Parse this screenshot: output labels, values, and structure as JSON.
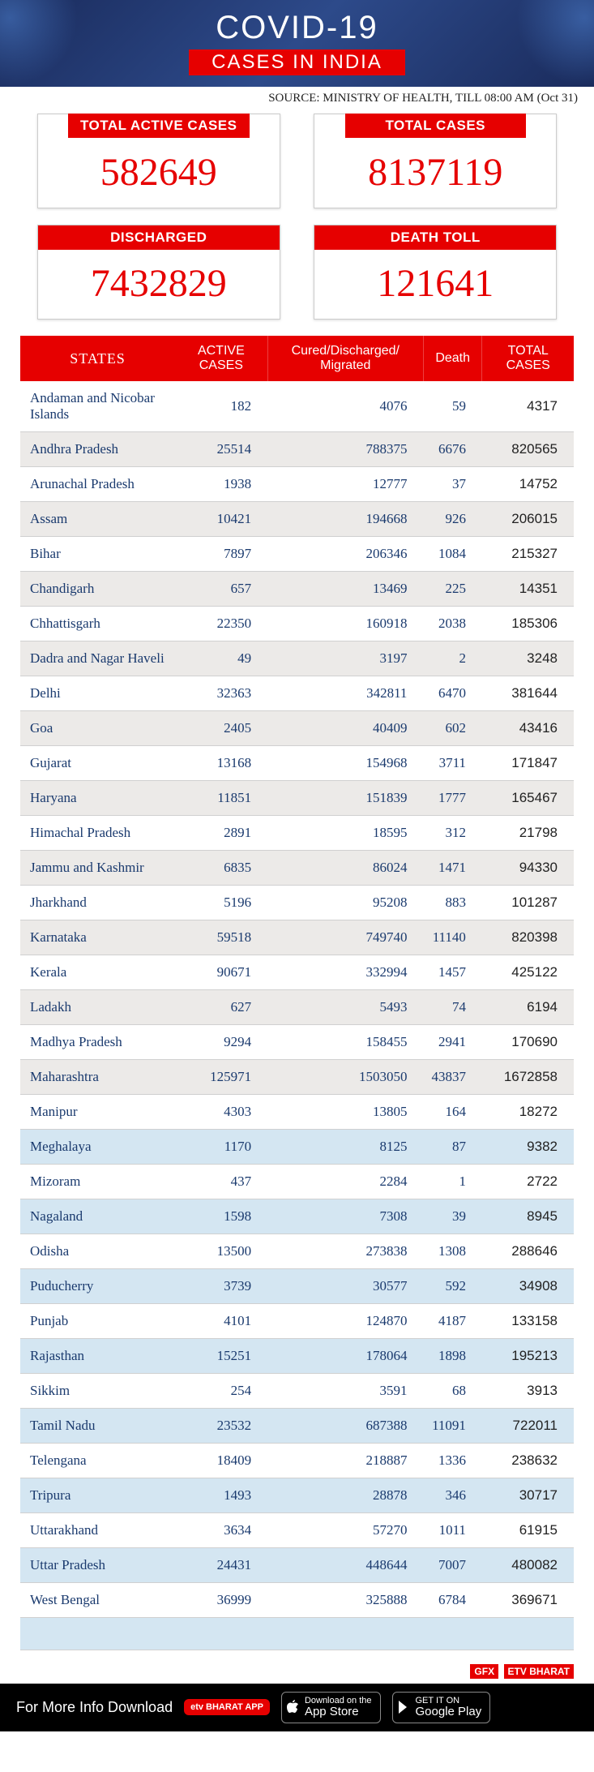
{
  "header": {
    "title": "COVID-19",
    "subtitle": "CASES IN INDIA",
    "colors": {
      "bg_gradient": [
        "#1a2b5c",
        "#2d4a8a"
      ],
      "accent": "#e60000",
      "title_color": "#ffffff"
    }
  },
  "source_line": "SOURCE: MINISTRY OF HEALTH, TILL 08:00 AM (Oct 31)",
  "stats": [
    {
      "label": "TOTAL ACTIVE CASES",
      "value": "582649"
    },
    {
      "label": "TOTAL CASES",
      "value": "8137119"
    },
    {
      "label": "DISCHARGED",
      "value": "7432829"
    },
    {
      "label": "DEATH TOLL",
      "value": "121641"
    }
  ],
  "table": {
    "columns": [
      "STATES",
      "ACTIVE CASES",
      "Cured/Discharged/ Migrated",
      "Death",
      "TOTAL CASES"
    ],
    "column_align": [
      "left",
      "right",
      "right",
      "right",
      "right"
    ],
    "header_bg": "#e60000",
    "header_color": "#ffffff",
    "zone_a_even_bg": "#eceae8",
    "zone_b_even_bg": "#d4e6f2",
    "cell_color_primary": "#1a3a6e",
    "cell_color_total": "#222222",
    "font_family_primary": "Georgia, serif",
    "rows": [
      {
        "zone": "a",
        "cells": [
          "Andaman and Nicobar Islands",
          "182",
          "4076",
          "59",
          "4317"
        ]
      },
      {
        "zone": "a",
        "cells": [
          "Andhra Pradesh",
          "25514",
          "788375",
          "6676",
          "820565"
        ]
      },
      {
        "zone": "a",
        "cells": [
          "Arunachal Pradesh",
          "1938",
          "12777",
          "37",
          "14752"
        ]
      },
      {
        "zone": "a",
        "cells": [
          "Assam",
          "10421",
          "194668",
          "926",
          "206015"
        ]
      },
      {
        "zone": "a",
        "cells": [
          "Bihar",
          "7897",
          "206346",
          "1084",
          "215327"
        ]
      },
      {
        "zone": "a",
        "cells": [
          "Chandigarh",
          "657",
          "13469",
          "225",
          "14351"
        ]
      },
      {
        "zone": "a",
        "cells": [
          "Chhattisgarh",
          "22350",
          "160918",
          "2038",
          "185306"
        ]
      },
      {
        "zone": "a",
        "cells": [
          "Dadra and Nagar Haveli",
          "49",
          "3197",
          "2",
          "3248"
        ]
      },
      {
        "zone": "a",
        "cells": [
          "Delhi",
          "32363",
          "342811",
          "6470",
          "381644"
        ]
      },
      {
        "zone": "a",
        "cells": [
          "Goa",
          "2405",
          "40409",
          "602",
          "43416"
        ]
      },
      {
        "zone": "a",
        "cells": [
          "Gujarat",
          "13168",
          "154968",
          "3711",
          "171847"
        ]
      },
      {
        "zone": "a",
        "cells": [
          "Haryana",
          "11851",
          "151839",
          "1777",
          "165467"
        ]
      },
      {
        "zone": "a",
        "cells": [
          "Himachal Pradesh",
          "2891",
          "18595",
          "312",
          "21798"
        ]
      },
      {
        "zone": "a",
        "cells": [
          "Jammu and Kashmir",
          "6835",
          "86024",
          "1471",
          "94330"
        ]
      },
      {
        "zone": "a",
        "cells": [
          "Jharkhand",
          "5196",
          "95208",
          "883",
          "101287"
        ]
      },
      {
        "zone": "a",
        "cells": [
          "Karnataka",
          "59518",
          "749740",
          "11140",
          "820398"
        ]
      },
      {
        "zone": "a",
        "cells": [
          "Kerala",
          "90671",
          "332994",
          "1457",
          "425122"
        ]
      },
      {
        "zone": "a",
        "cells": [
          "Ladakh",
          "627",
          "5493",
          "74",
          "6194"
        ]
      },
      {
        "zone": "a",
        "cells": [
          "Madhya Pradesh",
          "9294",
          "158455",
          "2941",
          "170690"
        ]
      },
      {
        "zone": "a",
        "cells": [
          "Maharashtra",
          "125971",
          "1503050",
          "43837",
          "1672858"
        ]
      },
      {
        "zone": "a",
        "cells": [
          "Manipur",
          "4303",
          "13805",
          "164",
          "18272"
        ]
      },
      {
        "zone": "b",
        "cells": [
          "Meghalaya",
          "1170",
          "8125",
          "87",
          "9382"
        ]
      },
      {
        "zone": "b",
        "cells": [
          "Mizoram",
          "437",
          "2284",
          "1",
          "2722"
        ]
      },
      {
        "zone": "b",
        "cells": [
          "Nagaland",
          "1598",
          "7308",
          "39",
          "8945"
        ]
      },
      {
        "zone": "b",
        "cells": [
          "Odisha",
          "13500",
          "273838",
          "1308",
          "288646"
        ]
      },
      {
        "zone": "b",
        "cells": [
          "Puducherry",
          "3739",
          "30577",
          "592",
          "34908"
        ]
      },
      {
        "zone": "b",
        "cells": [
          "Punjab",
          "4101",
          "124870",
          "4187",
          "133158"
        ]
      },
      {
        "zone": "b",
        "cells": [
          "Rajasthan",
          "15251",
          "178064",
          "1898",
          "195213"
        ]
      },
      {
        "zone": "b",
        "cells": [
          "Sikkim",
          "254",
          "3591",
          "68",
          "3913"
        ]
      },
      {
        "zone": "b",
        "cells": [
          "Tamil Nadu",
          "23532",
          "687388",
          "11091",
          "722011"
        ]
      },
      {
        "zone": "b",
        "cells": [
          "Telengana",
          "18409",
          "218887",
          "1336",
          "238632"
        ]
      },
      {
        "zone": "b",
        "cells": [
          "Tripura",
          "1493",
          "28878",
          "346",
          "30717"
        ]
      },
      {
        "zone": "b",
        "cells": [
          "Uttarakhand",
          "3634",
          "57270",
          "1011",
          "61915"
        ]
      },
      {
        "zone": "b",
        "cells": [
          "Uttar Pradesh",
          "24431",
          "448644",
          "7007",
          "480082"
        ]
      },
      {
        "zone": "b",
        "cells": [
          "West Bengal",
          "36999",
          "325888",
          "6784",
          "369671"
        ]
      }
    ]
  },
  "gfx": {
    "label1": "GFX",
    "label2": "ETV BHARAT"
  },
  "footer": {
    "text": "For More Info Download",
    "app_badge": "etv BHARAT APP",
    "appstore": {
      "small": "Download on the",
      "big": "App Store"
    },
    "playstore": {
      "small": "GET IT ON",
      "big": "Google Play"
    }
  }
}
